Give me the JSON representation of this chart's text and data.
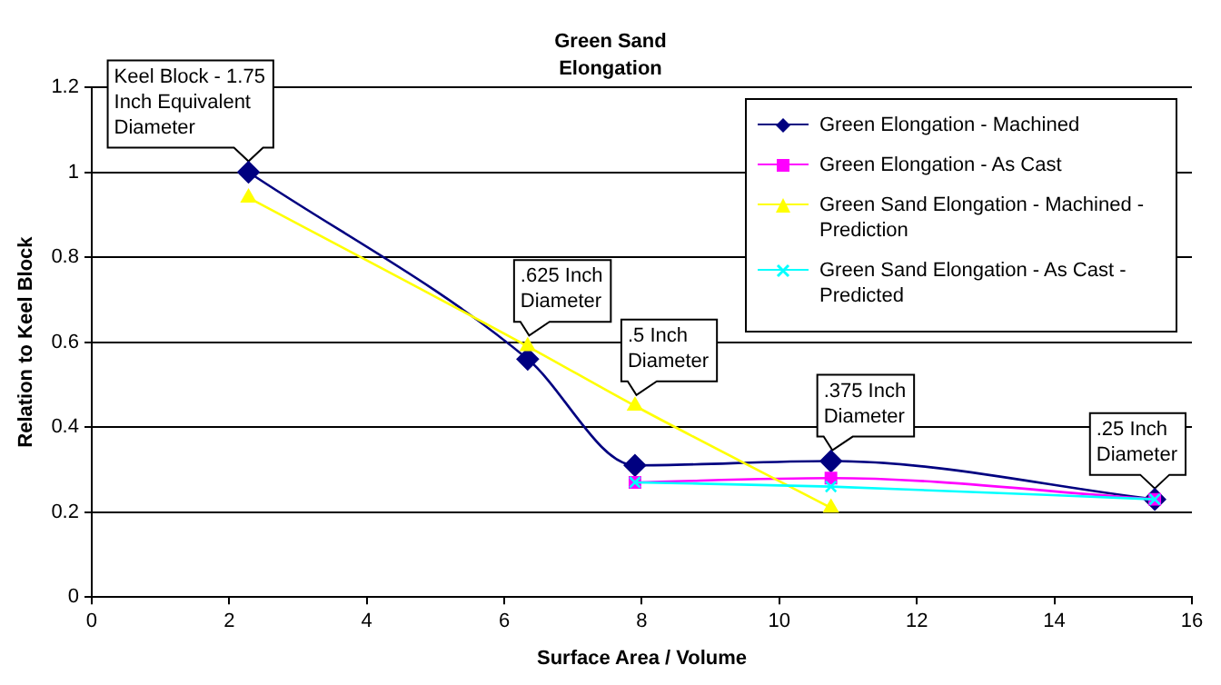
{
  "chart_data": {
    "type": "line",
    "title": "Green Sand Elongation",
    "xlabel": "Surface Area / Volume",
    "ylabel": "Relation to Keel Block",
    "xlim": [
      0,
      16
    ],
    "xticks": [
      0,
      2,
      4,
      6,
      8,
      10,
      12,
      14,
      16
    ],
    "ylim": [
      0,
      1.2
    ],
    "yticks": [
      0,
      0.2,
      0.4,
      0.6,
      0.8,
      1,
      1.2
    ],
    "grid": "y",
    "legend": "top right",
    "x": [
      2.28,
      6.34,
      7.9,
      10.75,
      15.46
    ],
    "series": [
      {
        "name": "Green Elongation - Machined",
        "color": "#000080",
        "marker": "diamond",
        "values": [
          1.0,
          0.56,
          0.31,
          0.32,
          0.23
        ]
      },
      {
        "name": "Green Elongation - As Cast",
        "color": "#ff00ff",
        "marker": "square",
        "values": [
          null,
          null,
          0.27,
          0.28,
          0.23
        ]
      },
      {
        "name": "Green Sand Elongation - Machined - Prediction",
        "color": "#ffff00",
        "marker": "triangle",
        "values": [
          0.94,
          0.59,
          0.45,
          0.21,
          null
        ]
      },
      {
        "name": "Green Sand Elongation - As Cast - Predicted",
        "color": "#00ffff",
        "marker": "cross",
        "values": [
          null,
          null,
          0.27,
          0.26,
          0.23
        ]
      }
    ],
    "annotations": [
      {
        "text": "Keel Block - 1.75 Inch Equivalent Diameter",
        "x": 2.28,
        "y": 1.0
      },
      {
        "text": ".625 Inch Diameter",
        "x": 6.34,
        "y": 0.59
      },
      {
        "text": ".5 Inch Diameter",
        "x": 7.9,
        "y": 0.45
      },
      {
        "text": ".375 Inch Diameter",
        "x": 10.75,
        "y": 0.32
      },
      {
        "text": ".25 Inch Diameter",
        "x": 15.46,
        "y": 0.23
      }
    ]
  }
}
